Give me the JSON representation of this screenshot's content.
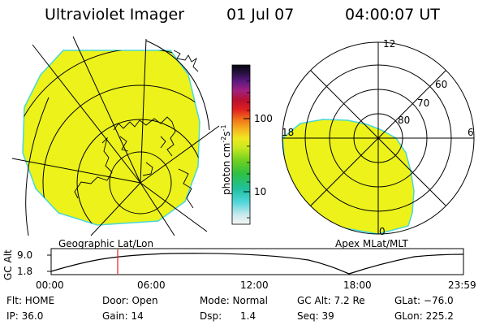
{
  "header": {
    "instrument": "Ultraviolet Imager",
    "date": "01 Jul 07",
    "time": "04:00:07 UT"
  },
  "colorbar": {
    "unit_label": "photon cm",
    "unit_sup1": "-2",
    "unit_mid": "s",
    "unit_sup2": "-1",
    "ticks": [
      "100",
      "10"
    ],
    "fill_color": "#ecf21a"
  },
  "left_panel": {
    "caption": "Geographic Lat/Lon"
  },
  "right_panel": {
    "caption": "Apex MLat/MLT",
    "mlt_labels": {
      "top": "12",
      "left": "18",
      "right": "6",
      "bottom": "0"
    },
    "lat_labels": [
      "60",
      "70",
      "80"
    ]
  },
  "orbit": {
    "ylabel": "GC Alt",
    "yticks": [
      "9.0",
      "1.8"
    ],
    "xticks": [
      "00:00",
      "06:00",
      "12:00",
      "18:00",
      "23:59"
    ],
    "marker_time": "04:00"
  },
  "status": {
    "row1": {
      "flt": "Flt: HOME",
      "door": "Door: Open",
      "mode": "Mode: Normal",
      "gcalt": "GC Alt: 7.2 Re",
      "glat": "GLat: −76.0"
    },
    "row2": {
      "ip": "IP: 36.0",
      "gain": "Gain: 14",
      "dsp_label": "Dsp:",
      "dsp_value": "1.4",
      "seq": "Seq: 39",
      "glon": "GLon: 225.2"
    }
  }
}
